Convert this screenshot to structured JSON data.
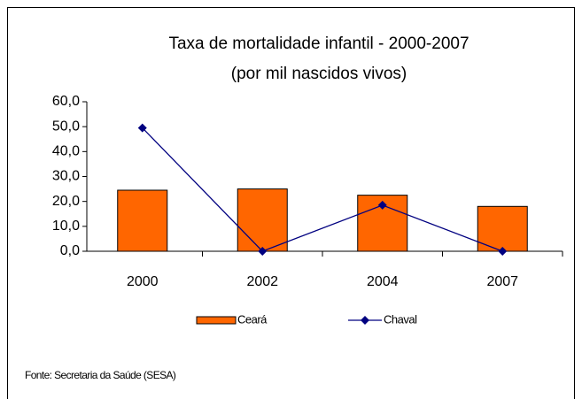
{
  "chart_data": {
    "type": "bar",
    "title": "Taxa de mortalidade infantil - 2000-2007",
    "subtitle": "(por mil nascidos vivos)",
    "categories": [
      "2000",
      "2002",
      "2004",
      "2007"
    ],
    "series": [
      {
        "name": "Ceará",
        "color": "#ff6600",
        "type": "bar",
        "values": [
          24.5,
          25,
          22.5,
          18
        ]
      },
      {
        "name": "Chaval",
        "color": "#000080",
        "type": "line",
        "values": [
          49.5,
          0,
          18.5,
          0
        ]
      }
    ],
    "ylim": [
      0,
      60
    ],
    "yticks": [
      {
        "value": 0,
        "label": "0,0"
      },
      {
        "value": 10,
        "label": "10,0"
      },
      {
        "value": 20,
        "label": "20,0"
      },
      {
        "value": 30,
        "label": "30,0"
      },
      {
        "value": 40,
        "label": "40,0"
      },
      {
        "value": 50,
        "label": "50,0"
      },
      {
        "value": 60,
        "label": "60,0"
      }
    ],
    "grid": false,
    "legend": "bottom",
    "source": "Fonte: Secretaria da Saúde (SESA)"
  }
}
